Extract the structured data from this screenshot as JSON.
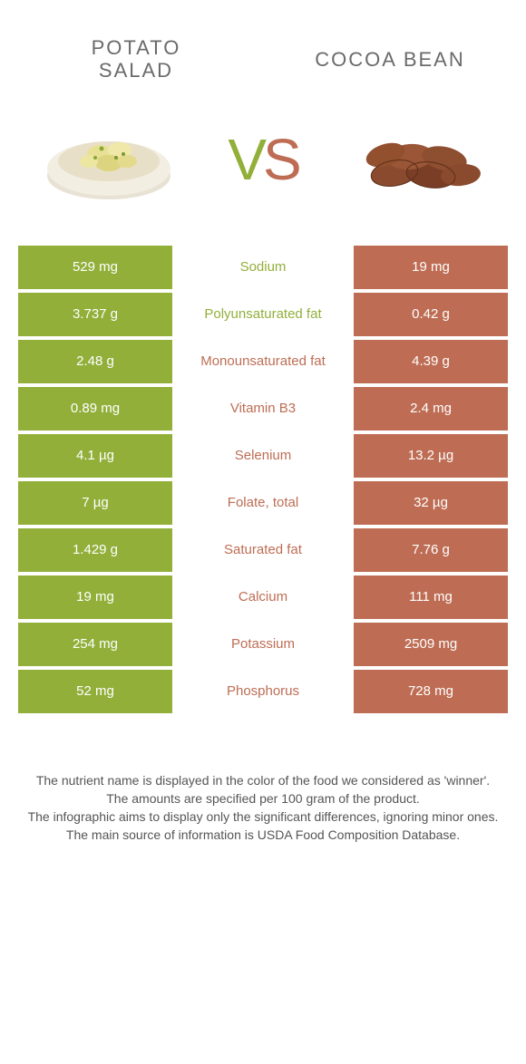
{
  "header": {
    "left_title": "POTATO SALAD",
    "right_title": "COCOA BEAN",
    "vs_v": "V",
    "vs_s": "S"
  },
  "colors": {
    "left": "#92af3a",
    "left_text": "#ffffff",
    "right": "#be6d54",
    "right_text": "#ffffff",
    "mid_left": "#92af3a",
    "mid_right": "#be6d54"
  },
  "rows": [
    {
      "left": "529 mg",
      "label": "Sodium",
      "right": "19 mg",
      "winner": "left"
    },
    {
      "left": "3.737 g",
      "label": "Polyunsaturated fat",
      "right": "0.42 g",
      "winner": "left"
    },
    {
      "left": "2.48 g",
      "label": "Monounsaturated fat",
      "right": "4.39 g",
      "winner": "right"
    },
    {
      "left": "0.89 mg",
      "label": "Vitamin B3",
      "right": "2.4 mg",
      "winner": "right"
    },
    {
      "left": "4.1 µg",
      "label": "Selenium",
      "right": "13.2 µg",
      "winner": "right"
    },
    {
      "left": "7 µg",
      "label": "Folate, total",
      "right": "32 µg",
      "winner": "right"
    },
    {
      "left": "1.429 g",
      "label": "Saturated fat",
      "right": "7.76 g",
      "winner": "right"
    },
    {
      "left": "19 mg",
      "label": "Calcium",
      "right": "111 mg",
      "winner": "right"
    },
    {
      "left": "254 mg",
      "label": "Potassium",
      "right": "2509 mg",
      "winner": "right"
    },
    {
      "left": "52 mg",
      "label": "Phosphorus",
      "right": "728 mg",
      "winner": "right"
    }
  ],
  "footer": {
    "line1": "The nutrient name is displayed in the color of the food we considered as 'winner'.",
    "line2": "The amounts are specified per 100 gram of the product.",
    "line3": "The infographic aims to display only the significant differences, ignoring minor ones.",
    "line4": "The main source of information is USDA Food Composition Database."
  }
}
